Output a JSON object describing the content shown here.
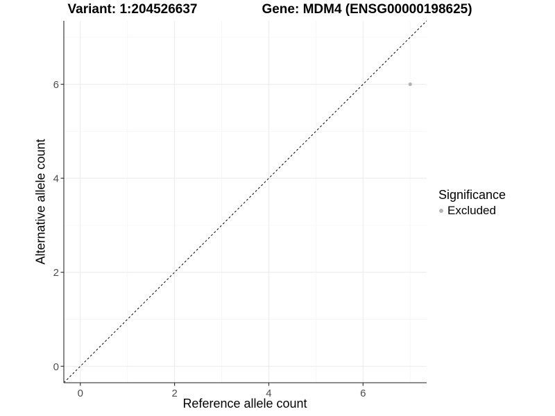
{
  "header": {
    "variant_title": "Variant: 1:204526637",
    "gene_title": "Gene: MDM4 (ENSG00000198625)"
  },
  "chart_data": {
    "type": "scatter",
    "title": "Variant: 1:204526637   Gene: MDM4 (ENSG00000198625)",
    "xlabel": "Reference allele count",
    "ylabel": "Alternative allele count",
    "xlim": [
      -0.35,
      7.35
    ],
    "ylim": [
      -0.35,
      7.35
    ],
    "x_major_ticks": [
      0,
      2,
      4,
      6
    ],
    "y_major_ticks": [
      0,
      2,
      4,
      6
    ],
    "x_minor_ticks": [
      1,
      3,
      5,
      7
    ],
    "y_minor_ticks": [
      1,
      3,
      5,
      7
    ],
    "grid": "major+minor",
    "reference_line": {
      "type": "identity y=x",
      "from": [
        -0.35,
        -0.35
      ],
      "to": [
        7.35,
        7.35
      ],
      "style": "dashed",
      "color": "#000000"
    },
    "series": [
      {
        "name": "Excluded",
        "color": "#b3b3b3",
        "points": [
          {
            "x": 7,
            "y": 6
          }
        ]
      }
    ],
    "legend": {
      "position": "right",
      "title": "Significance",
      "items": [
        {
          "label": "Excluded",
          "color": "#b3b3b3"
        }
      ]
    },
    "colors": {
      "grid_major": "#ebebeb",
      "grid_minor": "#f5f5f5",
      "axis_line": "#4a4a4a",
      "tick_mark": "#333333",
      "tick_text": "#4d4d4d",
      "background": "#ffffff"
    }
  }
}
